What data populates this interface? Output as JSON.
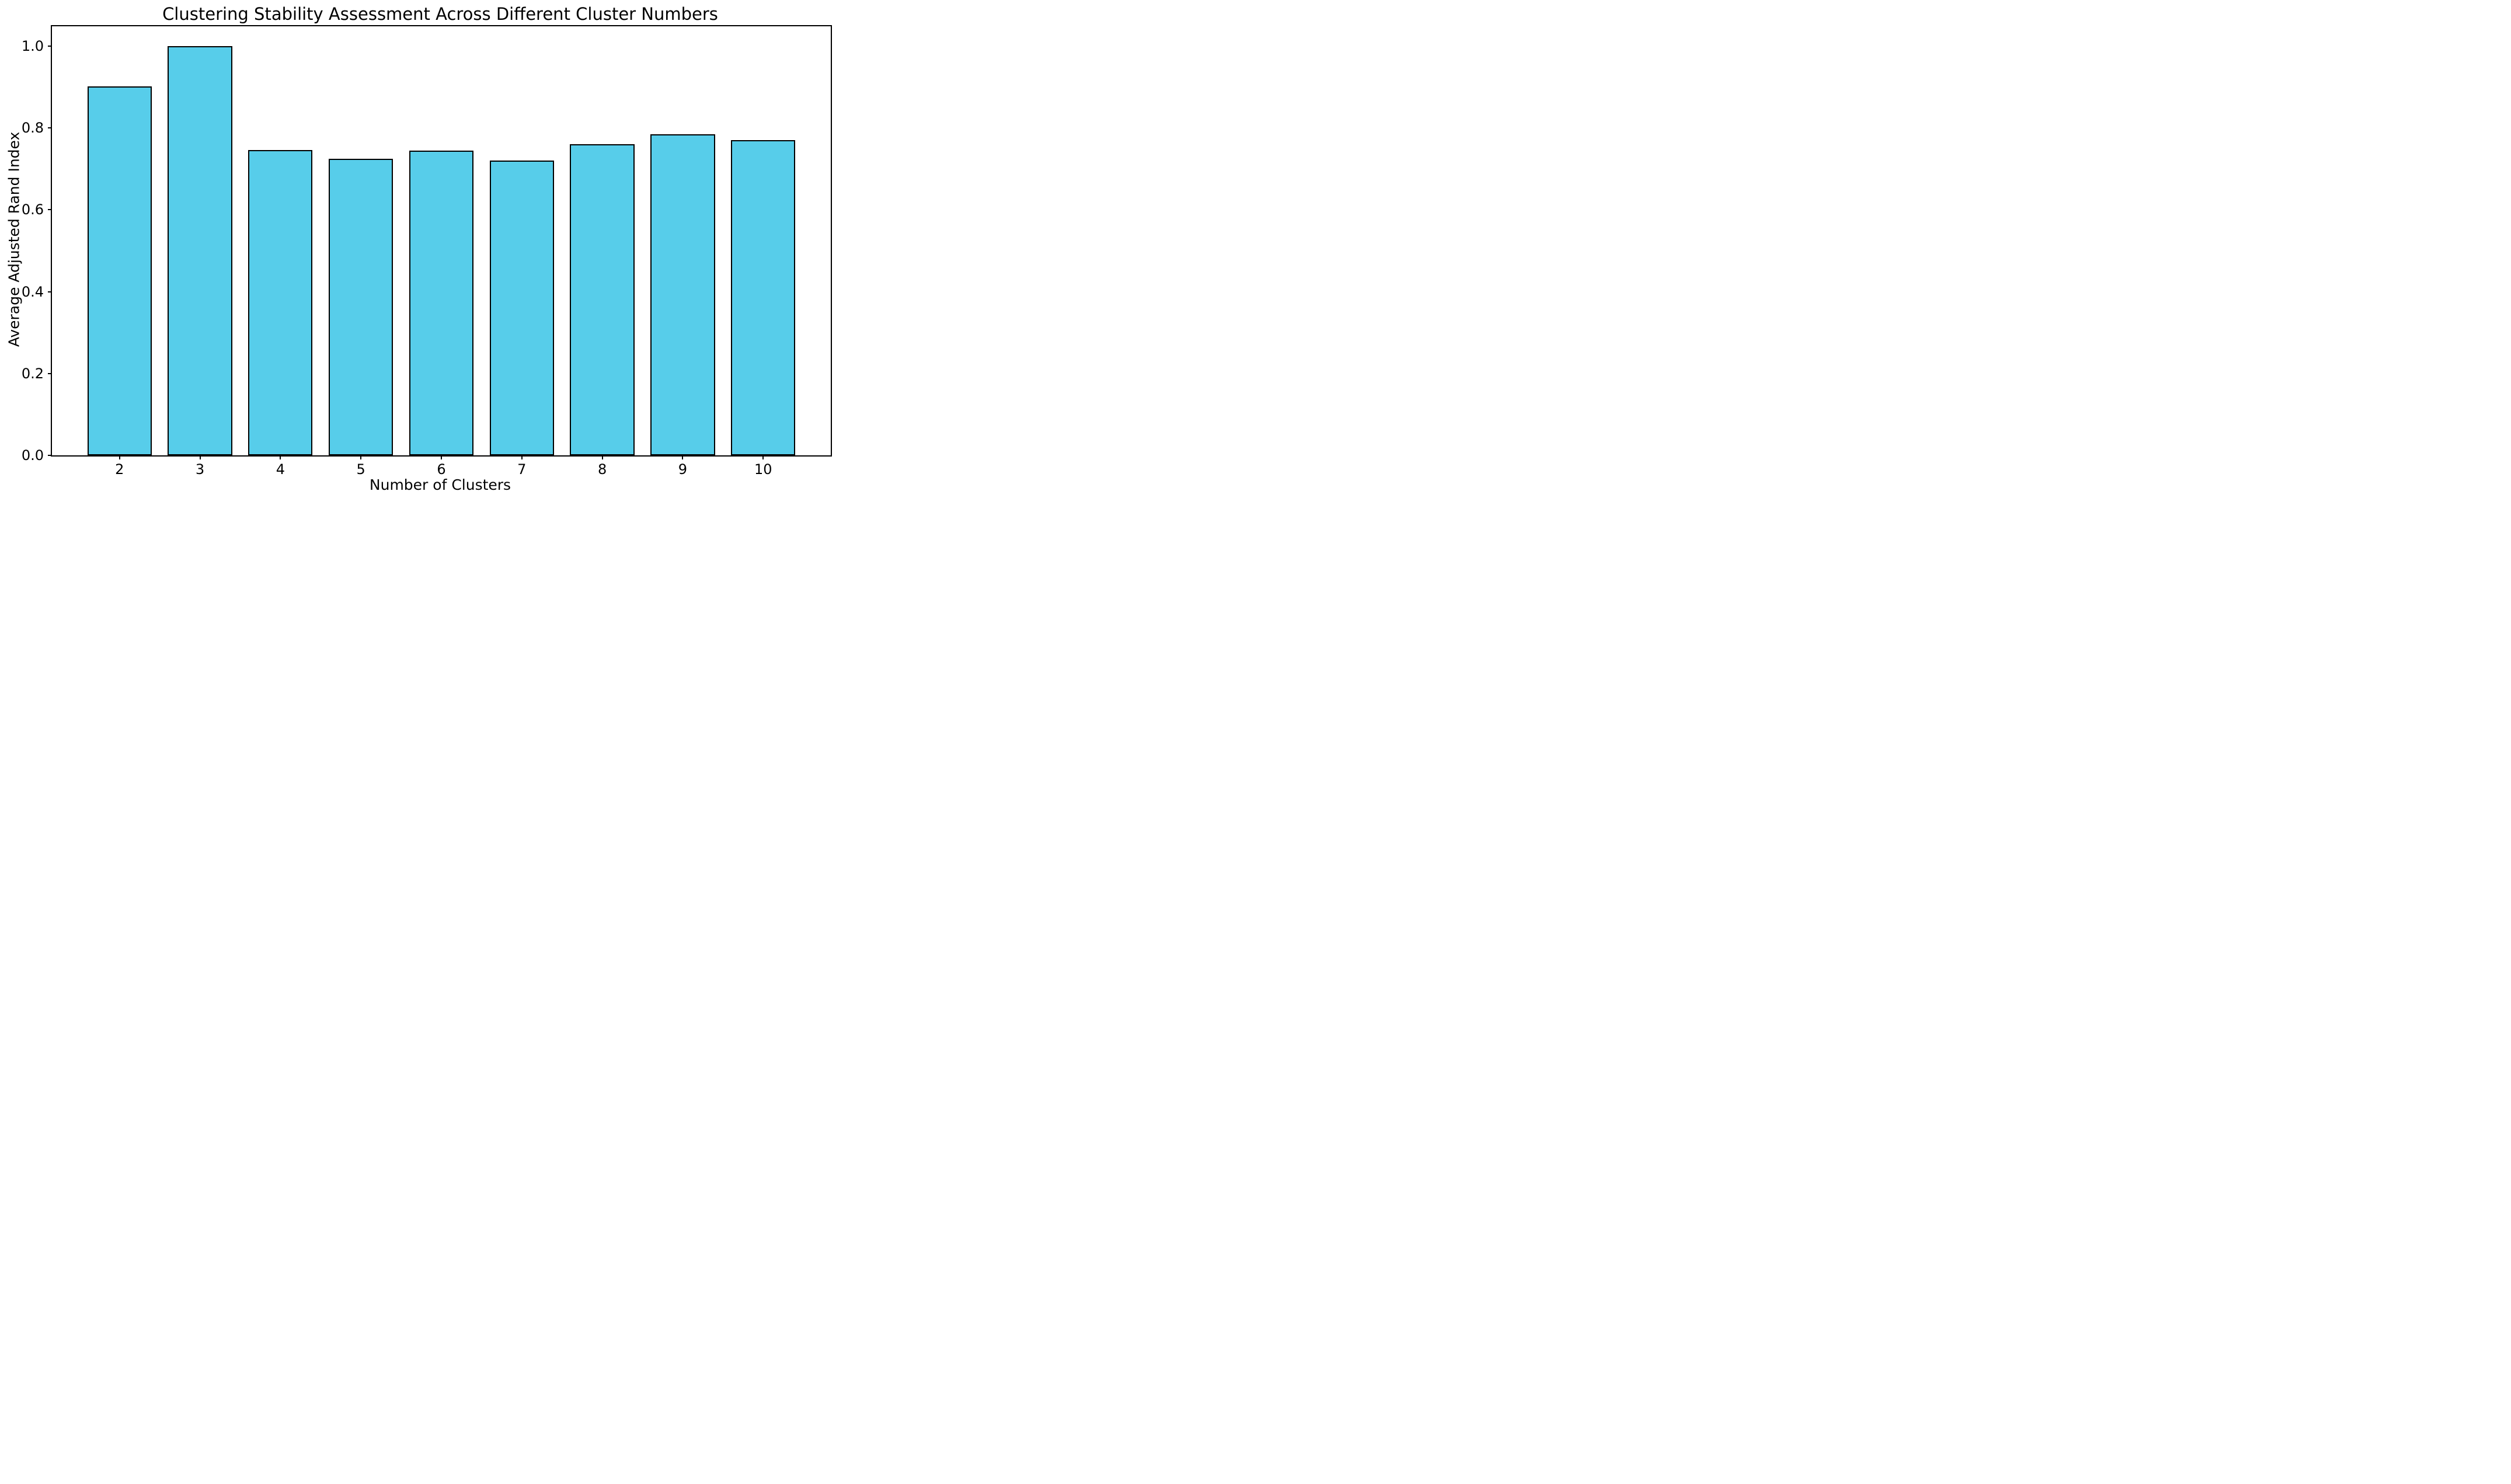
{
  "chart_data": {
    "type": "bar",
    "title": "Clustering Stability Assessment Across Different Cluster Numbers",
    "xlabel": "Number of Clusters",
    "ylabel": "Average Adjusted Rand Index",
    "categories": [
      "2",
      "3",
      "4",
      "5",
      "6",
      "7",
      "8",
      "9",
      "10"
    ],
    "values": [
      0.902,
      1.0,
      0.746,
      0.725,
      0.744,
      0.72,
      0.761,
      0.785,
      0.77
    ],
    "bar_width": 0.8,
    "xlim": [
      1.16,
      10.84
    ],
    "ylim": [
      0,
      1.0485
    ],
    "yticks": [
      "0.0",
      "0.2",
      "0.4",
      "0.6",
      "0.8",
      "1.0"
    ],
    "grid": false,
    "legend_position": "none",
    "bar_color": "#57CDEA",
    "bar_edge_color": "#000000",
    "axis_color": "#000000",
    "background_color": "#ffffff"
  }
}
